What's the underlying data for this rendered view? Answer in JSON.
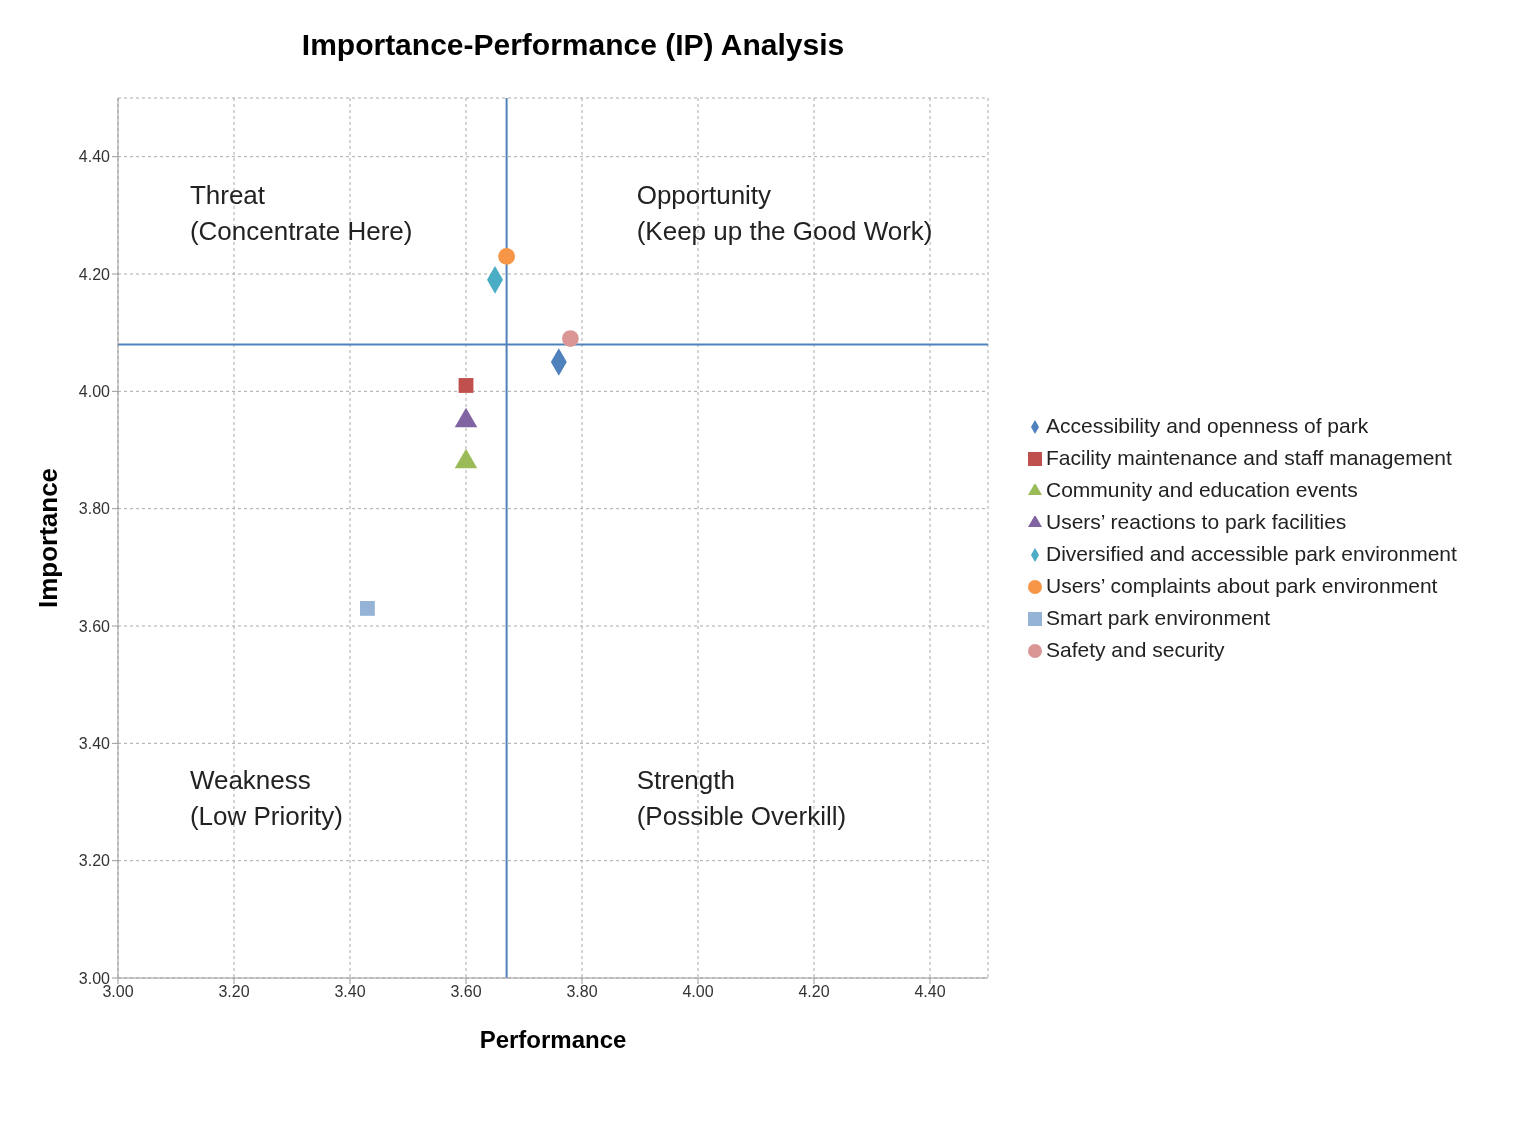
{
  "chart_data": {
    "type": "scatter",
    "title": "Importance-Performance (IP) Analysis",
    "xlabel": "Performance",
    "ylabel": "Importance",
    "xlim": [
      3,
      4.5
    ],
    "ylim": [
      3,
      4.5
    ],
    "xticks": [
      {
        "value": 3,
        "label": "3.00"
      },
      {
        "value": 3.2,
        "label": "3.20"
      },
      {
        "value": 3.4,
        "label": "3.40"
      },
      {
        "value": 3.6,
        "label": "3.60"
      },
      {
        "value": 3.8,
        "label": "3.80"
      },
      {
        "value": 4,
        "label": "4.00"
      },
      {
        "value": 4.2,
        "label": "4.20"
      },
      {
        "value": 4.4,
        "label": "4.40"
      }
    ],
    "yticks": [
      {
        "value": 3,
        "label": "3.00"
      },
      {
        "value": 3.2,
        "label": "3.20"
      },
      {
        "value": 3.4,
        "label": "3.40"
      },
      {
        "value": 3.6,
        "label": "3.60"
      },
      {
        "value": 3.8,
        "label": "3.80"
      },
      {
        "value": 4,
        "label": "4.00"
      },
      {
        "value": 4.2,
        "label": "4.20"
      },
      {
        "value": 4.4,
        "label": "4.40"
      }
    ],
    "grid": true,
    "legend": "right",
    "series": [
      {
        "name": "Accessibility and openness of park",
        "color": "#4f81bd",
        "marker": "diamond",
        "x": [
          3.76
        ],
        "values": [
          4.05
        ]
      },
      {
        "name": "Facility maintenance and staff management",
        "color": "#c0504d",
        "marker": "square",
        "x": [
          3.6
        ],
        "values": [
          4.01
        ]
      },
      {
        "name": "Community and education events",
        "color": "#9bbb59",
        "marker": "triangle",
        "x": [
          3.6
        ],
        "values": [
          3.88
        ]
      },
      {
        "name": "Users’ reactions to park facilities",
        "color": "#8064a2",
        "marker": "triangle",
        "x": [
          3.6
        ],
        "values": [
          3.95
        ]
      },
      {
        "name": "Diversified and accessible park environment",
        "color": "#4bacc6",
        "marker": "diamond",
        "x": [
          3.65
        ],
        "values": [
          4.19
        ]
      },
      {
        "name": "Users’ complaints about park environment",
        "color": "#f79646",
        "marker": "circle",
        "x": [
          3.67
        ],
        "values": [
          4.23
        ]
      },
      {
        "name": "Smart park environment",
        "color": "#95b3d7",
        "marker": "square",
        "x": [
          3.43
        ],
        "values": [
          3.63
        ]
      },
      {
        "name": "Safety and security",
        "color": "#d99694",
        "marker": "circle",
        "x": [
          3.78
        ],
        "values": [
          4.09
        ]
      }
    ],
    "ref_lines": [
      {
        "axis": "x",
        "value": 3.67,
        "color": "#4f81bd"
      },
      {
        "axis": "y",
        "value": 4.08,
        "color": "#4f81bd"
      }
    ],
    "annotations": [
      "Threat\n(Concentrate Here)",
      "Opportunity\n(Keep up the Good Work)",
      "Weakness\n(Low Priority)",
      "Strength\n(Possible Overkill)"
    ]
  }
}
